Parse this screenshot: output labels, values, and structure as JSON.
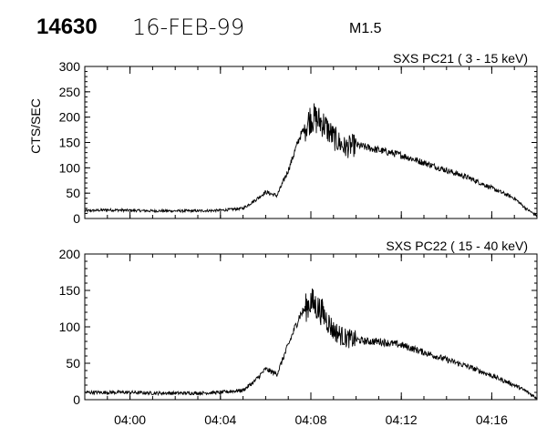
{
  "header": {
    "event_id": "14630",
    "date": "16-FEB-99",
    "flare_class": "M1.5"
  },
  "chart_data": [
    {
      "type": "line",
      "title": "SXS PC21  (  3 - 15 keV)",
      "ylabel": "CTS/SEC",
      "xlabel": "",
      "ylim": [
        0,
        300
      ],
      "yticks": [
        0,
        50,
        100,
        150,
        200,
        250,
        300
      ],
      "xlim": [
        "03:58",
        "04:18"
      ],
      "xticks": [
        "04:00",
        "04:04",
        "04:08",
        "04:12",
        "04:16"
      ],
      "series": [
        {
          "x": [
            "03:58",
            "03:59",
            "04:00",
            "04:01",
            "04:02",
            "04:03",
            "04:04",
            "04:05",
            "04:05:30",
            "04:06",
            "04:06:30",
            "04:07",
            "04:07:30",
            "04:08",
            "04:08:30",
            "04:09",
            "04:09:30",
            "04:10",
            "04:10:30",
            "04:11",
            "04:12",
            "04:13",
            "04:14",
            "04:15",
            "04:16",
            "04:17",
            "04:17:30",
            "04:18"
          ],
          "y": [
            15,
            17,
            16,
            15,
            15,
            15,
            16,
            20,
            35,
            52,
            45,
            95,
            160,
            200,
            190,
            160,
            140,
            145,
            140,
            135,
            125,
            110,
            95,
            80,
            60,
            40,
            20,
            5
          ]
        }
      ]
    },
    {
      "type": "line",
      "title": "SXS PC22  ( 15 - 40 keV)",
      "ylabel": "",
      "xlabel": "",
      "ylim": [
        0,
        200
      ],
      "yticks": [
        0,
        50,
        100,
        150,
        200
      ],
      "xlim": [
        "03:58",
        "04:18"
      ],
      "xticks": [
        "04:00",
        "04:04",
        "04:08",
        "04:12",
        "04:16"
      ],
      "series": [
        {
          "x": [
            "03:58",
            "03:59",
            "04:00",
            "04:01",
            "04:02",
            "04:03",
            "04:04",
            "04:05",
            "04:05:30",
            "04:06",
            "04:06:30",
            "04:07",
            "04:07:30",
            "04:08",
            "04:08:30",
            "04:09",
            "04:09:30",
            "04:10",
            "04:10:30",
            "04:11",
            "04:12",
            "04:13",
            "04:14",
            "04:15",
            "04:16",
            "04:17",
            "04:17:30",
            "04:18"
          ],
          "y": [
            10,
            10,
            10,
            9,
            9,
            9,
            10,
            13,
            25,
            42,
            35,
            75,
            115,
            135,
            120,
            95,
            85,
            82,
            80,
            80,
            75,
            65,
            55,
            45,
            33,
            20,
            12,
            2
          ]
        }
      ]
    }
  ]
}
